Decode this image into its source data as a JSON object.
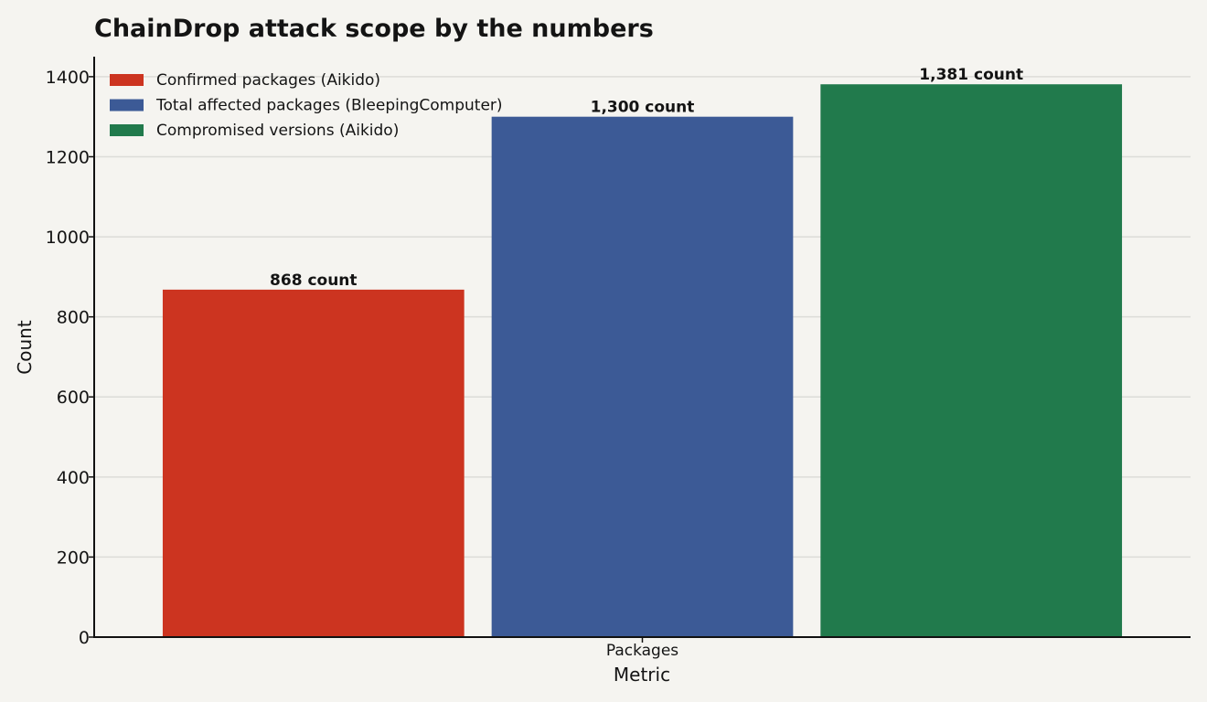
{
  "chart_data": {
    "type": "bar",
    "title": "ChainDrop attack scope by the numbers",
    "xlabel": "Metric",
    "ylabel": "Count",
    "categories": [
      "Packages"
    ],
    "series": [
      {
        "name": "Confirmed packages (Aikido)",
        "values": [
          868
        ],
        "color": "#cc3420",
        "label": "868 count"
      },
      {
        "name": "Total affected packages (BleepingComputer)",
        "values": [
          1300
        ],
        "color": "#3c5a96",
        "label": "1,300 count"
      },
      {
        "name": "Compromised versions (Aikido)",
        "values": [
          1381
        ],
        "color": "#217a4c",
        "label": "1,381 count"
      }
    ],
    "ylim": [
      0,
      1450
    ],
    "yticks": [
      0,
      200,
      400,
      600,
      800,
      1000,
      1200,
      1400
    ],
    "grid": true,
    "legend_position": "top-left"
  }
}
